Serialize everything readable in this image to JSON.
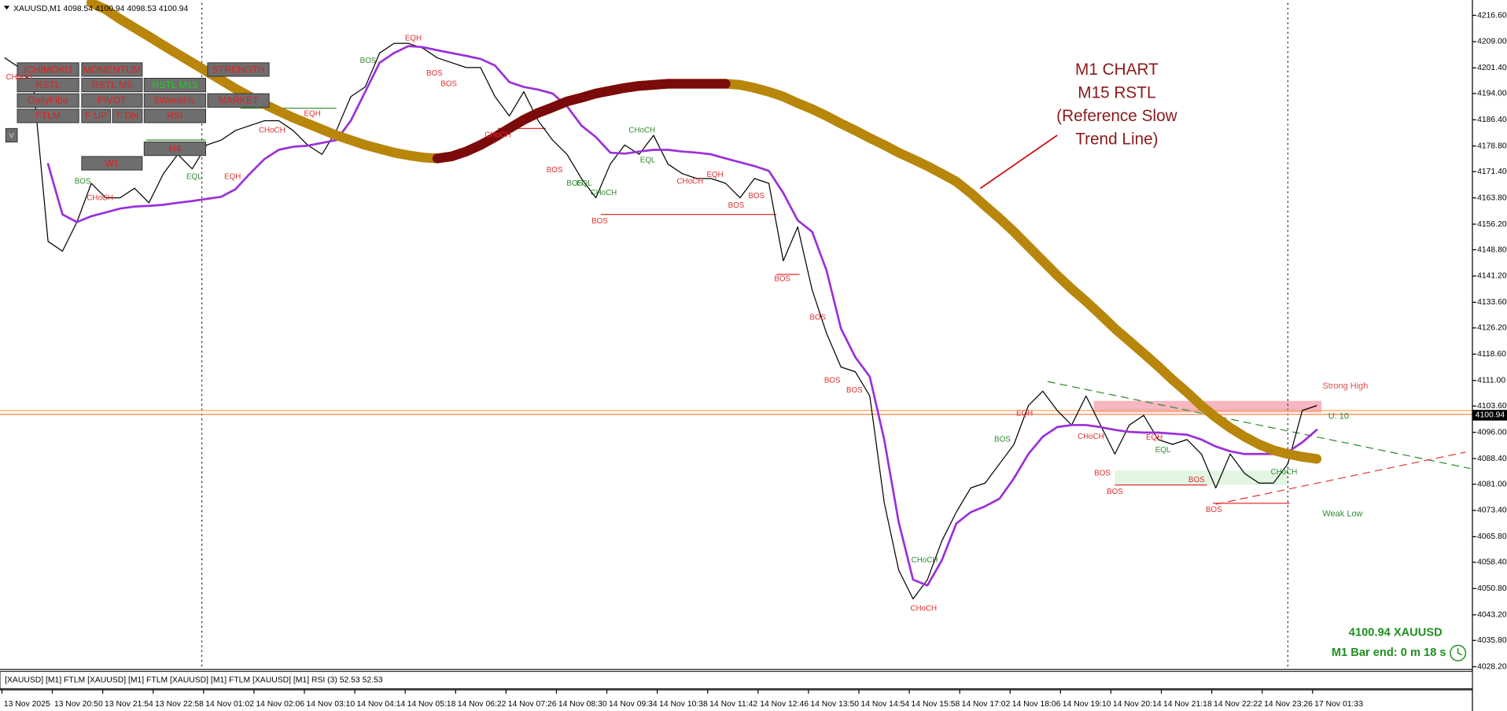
{
  "header": {
    "title": "XAUUSD,M1  4098.54 4100.94 4098.53 4100.94"
  },
  "chart_data": {
    "type": "line",
    "ylim": [
      4027.4,
      4220.2
    ],
    "yticks": [
      {
        "value": 4216.6,
        "label": "4216.60"
      },
      {
        "value": 4209,
        "label": "4209.00"
      },
      {
        "value": 4201.4,
        "label": "4201.40"
      },
      {
        "value": 4194,
        "label": "4194.00"
      },
      {
        "value": 4186.4,
        "label": "4186.40"
      },
      {
        "value": 4178.8,
        "label": "4178.80"
      },
      {
        "value": 4171.4,
        "label": "4171.40"
      },
      {
        "value": 4163.8,
        "label": "4163.80"
      },
      {
        "value": 4156.2,
        "label": "4156.20"
      },
      {
        "value": 4148.8,
        "label": "4148.80"
      },
      {
        "value": 4141.2,
        "label": "4141.20"
      },
      {
        "value": 4133.6,
        "label": "4133.60"
      },
      {
        "value": 4126.2,
        "label": "4126.20"
      },
      {
        "value": 4118.6,
        "label": "4118.60"
      },
      {
        "value": 4111,
        "label": "4111.00"
      },
      {
        "value": 4103.6,
        "label": "4103.60"
      },
      {
        "value": 4096,
        "label": "4096.00"
      },
      {
        "value": 4088.4,
        "label": "4088.40"
      },
      {
        "value": 4081,
        "label": "4081.00"
      },
      {
        "value": 4073.4,
        "label": "4073.40"
      },
      {
        "value": 4065.8,
        "label": "4065.80"
      },
      {
        "value": 4058.4,
        "label": "4058.40"
      },
      {
        "value": 4050.8,
        "label": "4050.80"
      },
      {
        "value": 4043.2,
        "label": "4043.20"
      },
      {
        "value": 4035.8,
        "label": "4035.80"
      },
      {
        "value": 4028.2,
        "label": "4028.20"
      }
    ],
    "xtick_labels": [
      "13 Nov 2025",
      "13 Nov 20:50",
      "13 Nov 21:54",
      "13 Nov 22:58",
      "14 Nov 01:02",
      "14 Nov 02:06",
      "14 Nov 03:10",
      "14 Nov 04:14",
      "14 Nov 05:18",
      "14 Nov 06:22",
      "14 Nov 07:26",
      "14 Nov 08:30",
      "14 Nov 09:34",
      "14 Nov 10:38",
      "14 Nov 11:42",
      "14 Nov 12:46",
      "14 Nov 13:50",
      "14 Nov 14:54",
      "14 Nov 15:58",
      "14 Nov 17:02",
      "14 Nov 18:06",
      "14 Nov 19:10",
      "14 Nov 20:14",
      "14 Nov 21:18",
      "14 Nov 22:22",
      "14 Nov 23:26",
      "17 Nov 01:33"
    ],
    "grid": false,
    "current_price": 4100.94,
    "series": [
      {
        "color": "#000000",
        "values": [
          4204.3,
          4201.5,
          4195.9,
          4151.2,
          4148.4,
          4156.8,
          4168.0,
          4163.8,
          4163.8,
          4166.6,
          4162.4,
          4170.8,
          4176.4,
          4172.2,
          4179.1,
          4180.5,
          4183.3,
          4184.7,
          4186.1,
          4186.1,
          4183.3,
          4179.1,
          4176.4,
          4183.3,
          4193.1,
          4195.9,
          4205.7,
          4208.5,
          4208.5,
          4207.1,
          4204.3,
          4202.9,
          4201.5,
          4201.5,
          4193.1,
          4187.5,
          4194.5,
          4186.1,
          4180.5,
          4176.4,
          4169.4,
          4163.8,
          4173.6,
          4179.1,
          4176.4,
          4181.9,
          4173.6,
          4170.8,
          4169.4,
          4169.4,
          4168.0,
          4163.8,
          4169.4,
          4168.0,
          4145.6,
          4155.4,
          4137.2,
          4124.6,
          4114.9,
          4113.5,
          4106.5,
          4075.7,
          4056.2,
          4047.8,
          4053.4,
          4064.6,
          4072.9,
          4079.9,
          4081.3,
          4086.9,
          4092.5,
          4103.7,
          4107.9,
          4102.3,
          4098.1,
          4106.5,
          4098.1,
          4089.7,
          4098.1,
          4100.9,
          4093.9,
          4092.5,
          4093.9,
          4089.7,
          4079.9,
          4089.7,
          4084.1,
          4081.3,
          4081.3,
          4086.9,
          4102.3,
          4103.7
        ]
      },
      {
        "color": "#9b30d9",
        "values": [
          null,
          null,
          null,
          4173.6,
          4159.0,
          4156.8,
          4158.5,
          4159.6,
          4160.7,
          4161.3,
          4161.5,
          4161.8,
          4162.4,
          4162.9,
          4163.5,
          4164.1,
          4166.3,
          4170.8,
          4175.0,
          4177.7,
          4178.6,
          4178.9,
          4179.7,
          4180.5,
          4186.1,
          4194.5,
          4202.9,
          4205.7,
          4207.7,
          4207.4,
          4206.5,
          4205.7,
          4204.9,
          4204.0,
          4202.1,
          4197.3,
          4195.9,
          4195.1,
          4194.0,
          4190.3,
          4184.7,
          4181.4,
          4176.9,
          4176.6,
          4177.2,
          4177.7,
          4177.7,
          4177.2,
          4176.9,
          4176.4,
          4175.2,
          4174.1,
          4173.0,
          4171.6,
          4165.2,
          4157.3,
          4154.0,
          4142.8,
          4126.0,
          4117.7,
          4112.1,
          4093.9,
          4070.1,
          4053.4,
          4051.7,
          4059.0,
          4069.6,
          4072.9,
          4074.6,
          4076.8,
          4082.7,
          4089.7,
          4094.7,
          4097.5,
          4098.1,
          4098.1,
          4097.5,
          4096.7,
          4096.1,
          4095.9,
          4095.9,
          4095.6,
          4095.3,
          4093.9,
          4091.9,
          4090.5,
          4089.7,
          4089.7,
          4089.7,
          4090.3,
          4093.1,
          4096.7
        ]
      },
      {
        "color": "#b8860b",
        "values": [
          null,
          null,
          null,
          null,
          null,
          null,
          4220.2,
          4218.3,
          4215.5,
          4213.0,
          4210.5,
          4207.9,
          4205.4,
          4202.9,
          4200.4,
          4197.9,
          4195.4,
          4193.1,
          4190.9,
          4188.9,
          4187.0,
          4185.3,
          4183.6,
          4181.9,
          4180.5,
          4179.1,
          4178.0,
          4176.9,
          4176.1,
          4175.5,
          4175.2,
          4175.8,
          4177.2,
          4179.1,
          4181.4,
          4183.9,
          4186.4,
          4188.4,
          4190.0,
          4191.7,
          4192.8,
          4194.0,
          4194.8,
          4195.6,
          4196.2,
          4196.5,
          4196.8,
          4196.8,
          4196.8,
          4196.8,
          4196.8,
          4196.5,
          4195.6,
          4194.5,
          4193.1,
          4191.2,
          4189.5,
          4187.5,
          4185.3,
          4183.3,
          4181.1,
          4179.1,
          4176.9,
          4175.0,
          4173.0,
          4170.8,
          4168.5,
          4165.2,
          4161.5,
          4157.9,
          4154.0,
          4149.8,
          4145.6,
          4141.4,
          4137.5,
          4133.9,
          4130.0,
          4126.0,
          4122.4,
          4118.8,
          4115.1,
          4111.2,
          4107.6,
          4103.7,
          4100.3,
          4097.3,
          4094.7,
          4092.5,
          4090.8,
          4089.7,
          4088.9,
          4088.3
        ]
      },
      {
        "color": "#7b0a0a",
        "values": [
          null,
          null,
          null,
          null,
          null,
          null,
          null,
          null,
          null,
          null,
          null,
          null,
          null,
          null,
          null,
          null,
          null,
          null,
          null,
          null,
          null,
          null,
          null,
          null,
          null,
          null,
          null,
          null,
          null,
          null,
          4175.2,
          4175.8,
          4177.2,
          4179.1,
          4181.4,
          4183.9,
          4186.4,
          4188.4,
          4190.0,
          4191.7,
          4192.8,
          4194.0,
          4194.8,
          4195.6,
          4196.2,
          4196.5,
          4196.8,
          4196.8,
          4196.8,
          4196.8,
          4196.8,
          null,
          null,
          null,
          null,
          null,
          null,
          null,
          null,
          null,
          null,
          null,
          null,
          null,
          null,
          null,
          null,
          null,
          null,
          null,
          null,
          null,
          null,
          null,
          null,
          null,
          null,
          null,
          null,
          null,
          null,
          null,
          null,
          null,
          null,
          null,
          null,
          null,
          null,
          null,
          null,
          null
        ]
      }
    ]
  },
  "annotation": [
    "M1  CHART",
    "M15  RSTL",
    "(Reference Slow",
    "Trend Line)"
  ],
  "buttons": [
    "ICHIMOKU",
    "MOMENTUM",
    "STRENGTH",
    "RSTL",
    "RSTL M5",
    "RSTL M15",
    "DailyFibo",
    "PIVOT",
    "5WeekHL",
    "MARKET",
    "FTLM",
    "F UP",
    "F DN",
    "RSI",
    "H4",
    "W1",
    "V"
  ],
  "smc_labels": [
    "BOS",
    "BOS",
    "BOS",
    "BOS",
    "BOS",
    "BOS",
    "BOS",
    "BOS",
    "BOS",
    "BOS",
    "BOS",
    "BOS",
    "BOS",
    "BOS",
    "CHoCH",
    "CHoCH",
    "CHoCH",
    "CHoCH",
    "CHoCH",
    "CHoCH",
    "CHoCH",
    "BOS",
    "BOS",
    "BOS",
    "BOS",
    "CHoCH",
    "CHoCH",
    "CHoCH",
    "CHoCH",
    "EQL",
    "EQL",
    "EQL",
    "EQL",
    "EQH",
    "EQH",
    "EQH",
    "EQH",
    "EQH",
    "EQH"
  ],
  "zone_labels": [
    "Strong High",
    "Weak Low",
    "U: 10"
  ],
  "info": {
    "price_symbol": "4100.94   XAUUSD",
    "bar_end": "M1 Bar end: 0 m 18 s"
  },
  "indicator_bar": "[XAUUSD] [M1] FTLM  [XAUUSD] [M1] FTLM  [XAUUSD] [M1] FTLM  [XAUUSD] [M1] RSI (3) 52.53 52.53"
}
